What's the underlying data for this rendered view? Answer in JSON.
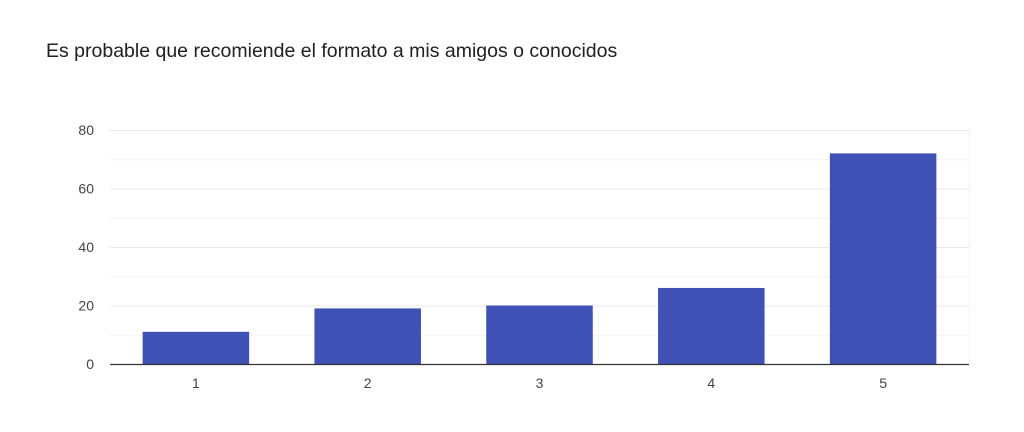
{
  "chart_data": {
    "type": "bar",
    "title": "Es probable que recomiende el formato a mis amigos o conocidos",
    "categories": [
      "1",
      "2",
      "3",
      "4",
      "5"
    ],
    "values": [
      11,
      19,
      20,
      26,
      72
    ],
    "ylim": [
      0,
      80
    ],
    "yticks": [
      0,
      20,
      40,
      60,
      80
    ],
    "xlabel": "",
    "ylabel": "",
    "grid": true,
    "legend": "none",
    "colors": {
      "bar": "#3f51b5",
      "grid_major": "#e8e8e8",
      "grid_minor": "#f3f3f3",
      "axis": "#333333",
      "text": "#444444"
    }
  }
}
